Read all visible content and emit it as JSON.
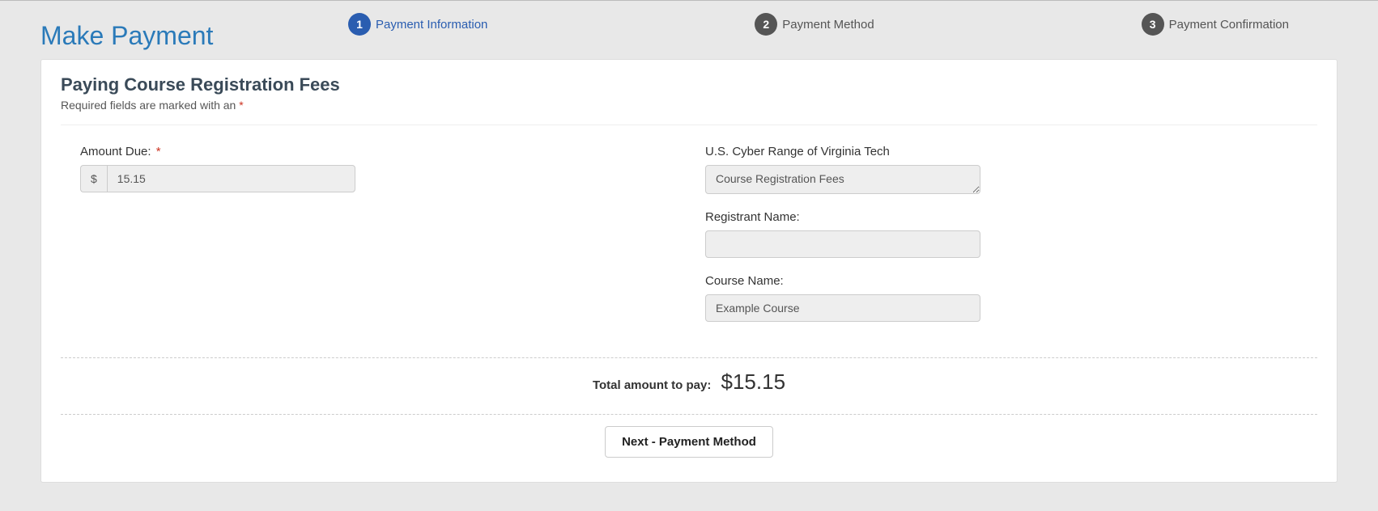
{
  "header": {
    "title": "Make Payment",
    "steps": [
      {
        "num": "1",
        "label": "Payment Information",
        "active": true
      },
      {
        "num": "2",
        "label": "Payment Method",
        "active": false
      },
      {
        "num": "3",
        "label": "Payment Confirmation",
        "active": false
      }
    ]
  },
  "card": {
    "title": "Paying Course Registration Fees",
    "required_note_prefix": "Required fields are marked with an ",
    "required_asterisk": "*"
  },
  "form": {
    "amount_due": {
      "label": "Amount Due:",
      "required_mark": "*",
      "currency_symbol": "$",
      "value": "15.15"
    },
    "org": {
      "label": "U.S. Cyber Range of Virginia Tech",
      "value": "Course Registration Fees"
    },
    "registrant": {
      "label": "Registrant Name:",
      "value": ""
    },
    "course": {
      "label": "Course Name:",
      "value": "Example Course"
    }
  },
  "total": {
    "label": "Total amount to pay:",
    "amount": "$15.15"
  },
  "actions": {
    "next_label": "Next - Payment Method"
  },
  "colors": {
    "accent": "#2a7ab9",
    "step_active_bg": "#2a5db0",
    "step_inactive_bg": "#555555",
    "page_bg": "#e8e8e8",
    "card_bg": "#ffffff",
    "input_bg": "#eeeeee",
    "border": "#cccccc",
    "asterisk": "#cc3322"
  }
}
